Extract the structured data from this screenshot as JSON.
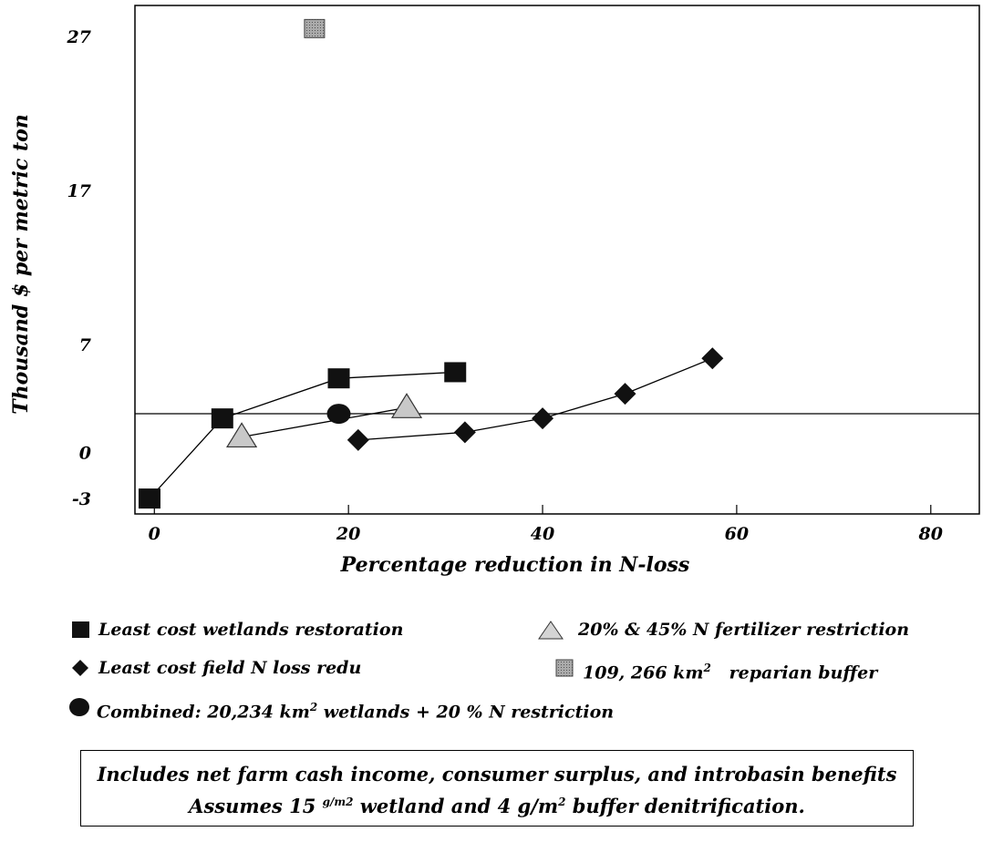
{
  "chart_data": {
    "type": "scatter",
    "xlabel": "Percentage reduction in N-loss",
    "ylabel": "Thousand $ per metric ton",
    "xlim": [
      -2,
      85
    ],
    "ylim": [
      -4,
      29
    ],
    "x_ticks": [
      "0",
      "20",
      "40",
      "60",
      "80"
    ],
    "y_ticks": [
      "27",
      "17",
      "7",
      "0",
      "-3"
    ],
    "grid": false,
    "series": [
      {
        "name": "Least cost wetlands restoration",
        "marker": "square",
        "color": "#111111",
        "connected": true,
        "x": [
          -0.5,
          7,
          19,
          31
        ],
        "y": [
          -3,
          2.2,
          4.8,
          5.2
        ]
      },
      {
        "name": "Least cost field N loss redu",
        "marker": "diamond",
        "color": "#111111",
        "connected": true,
        "x": [
          21,
          32,
          40,
          48.5,
          57.5
        ],
        "y": [
          0.8,
          1.3,
          2.2,
          3.8,
          6.1
        ]
      },
      {
        "name": "20% & 45% N fertilizer restriction",
        "marker": "triangle",
        "color": "#c8c8c8",
        "connected": true,
        "x": [
          9,
          26
        ],
        "y": [
          1,
          2.9
        ]
      },
      {
        "name": "109, 266 km ² reparian buffer",
        "marker": "hatched-square",
        "color": "#8a8a8a",
        "connected": false,
        "x": [
          16.5
        ],
        "y": [
          27.5
        ]
      },
      {
        "name": "Combined: 20,234 km² wetlands + 20 % N restriction",
        "marker": "circle",
        "color": "#111111",
        "connected": false,
        "x": [
          19
        ],
        "y": [
          2.5
        ]
      }
    ]
  },
  "legend": {
    "wetlands": "Least cost wetlands restoration",
    "fertilizer": "20% & 45% N fertilizer restriction",
    "field": "Least cost field N loss redu",
    "buffer_pre": "109, 266  km",
    "buffer_sup": "2",
    "buffer_post": "   reparian buffer",
    "combined_pre": "Combined:  20,234 km",
    "combined_sup": "2",
    "combined_post": " wetlands + 20 % N restriction"
  },
  "note": {
    "line1": "Includes net farm cash income, consumer surplus, and introbasin benefits",
    "line2_pre": "Assumes 15 ",
    "line2_sup": "g/m2",
    "line2_mid": " wetland and 4 g/m",
    "line2_sup2": "2",
    "line2_post": " buffer denitrification."
  }
}
